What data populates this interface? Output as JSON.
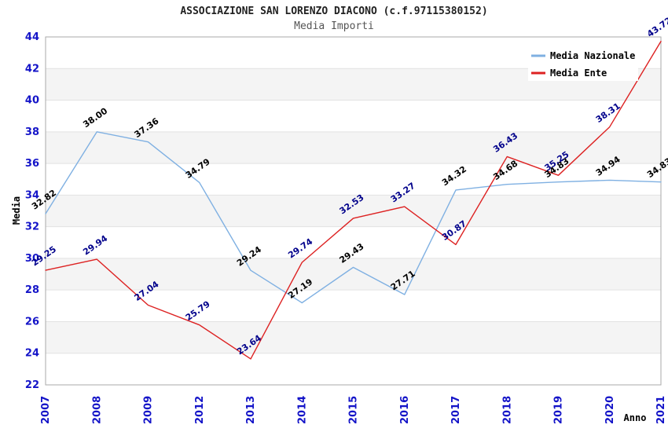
{
  "chart_data": {
    "type": "line",
    "title": "ASSOCIAZIONE SAN LORENZO DIACONO (c.f.97115380152)",
    "subtitle": "Media Importi",
    "xlabel": "Anno",
    "ylabel": "Media",
    "ylim": [
      22,
      44
    ],
    "ytick_step": 2,
    "grid": true,
    "legend_position": "top-right",
    "band_colors": [
      "#ffffff",
      "#f4f4f4"
    ],
    "gridline_color": "#e2e2e2",
    "frame_color": "#aaaaaa",
    "tick_label_color": "#1414c8",
    "categories": [
      "2007",
      "2008",
      "2009",
      "2012",
      "2013",
      "2014",
      "2015",
      "2016",
      "2017",
      "2018",
      "2019",
      "2020",
      "2021"
    ],
    "series": [
      {
        "name": "Media Nazionale",
        "color": "#7fb0e2",
        "label_color": "#000000",
        "values": [
          32.82,
          38.0,
          37.36,
          34.79,
          29.24,
          27.19,
          29.43,
          27.71,
          34.32,
          34.68,
          34.83,
          34.94,
          34.83
        ]
      },
      {
        "name": "Media Ente",
        "color": "#dd2222",
        "label_color": "#00008b",
        "values": [
          29.25,
          29.94,
          27.04,
          25.79,
          23.64,
          29.74,
          32.53,
          33.27,
          30.87,
          36.43,
          35.25,
          38.31,
          43.72
        ]
      }
    ]
  }
}
